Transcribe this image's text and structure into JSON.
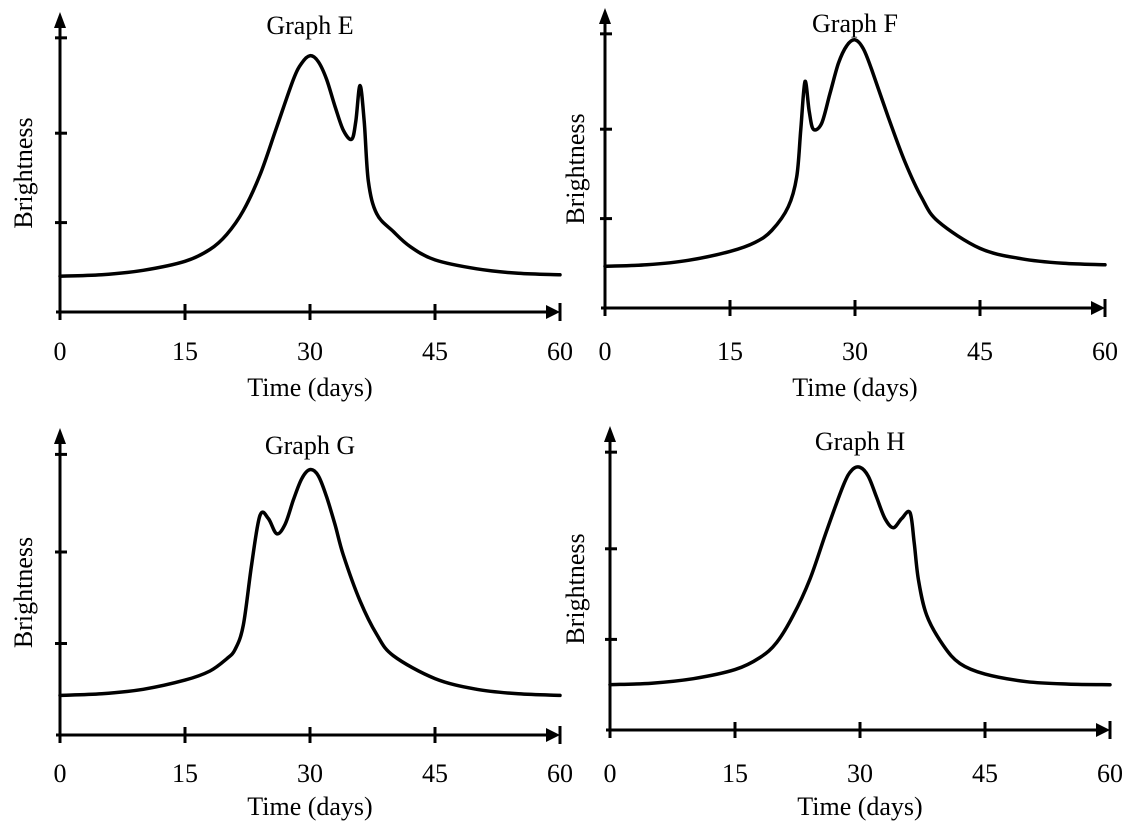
{
  "chart_data": [
    {
      "type": "line",
      "title": "Graph E",
      "xlabel": "Time (days)",
      "ylabel": "Brightness",
      "xlim": [
        0,
        60
      ],
      "x_ticks": [
        0,
        15,
        30,
        45,
        60
      ],
      "grid": false,
      "series": [
        {
          "x": [
            0,
            5,
            10,
            15,
            18,
            20,
            22,
            24,
            26,
            28,
            29,
            30,
            31,
            32,
            33,
            34,
            35,
            35.5,
            36,
            36.5,
            37,
            38,
            40,
            42,
            45,
            50,
            55,
            60
          ],
          "y": [
            0.12,
            0.125,
            0.14,
            0.17,
            0.21,
            0.26,
            0.34,
            0.46,
            0.62,
            0.78,
            0.835,
            0.86,
            0.84,
            0.78,
            0.69,
            0.61,
            0.58,
            0.64,
            0.76,
            0.64,
            0.44,
            0.33,
            0.27,
            0.22,
            0.175,
            0.145,
            0.13,
            0.125
          ]
        }
      ]
    },
    {
      "type": "line",
      "title": "Graph F",
      "xlabel": "Time (days)",
      "ylabel": "Brightness",
      "xlim": [
        0,
        60
      ],
      "x_ticks": [
        0,
        15,
        30,
        45,
        60
      ],
      "grid": false,
      "series": [
        {
          "x": [
            0,
            5,
            10,
            15,
            18,
            20,
            22,
            23,
            23.5,
            24,
            24.5,
            25,
            26,
            27,
            28,
            29,
            30,
            31,
            32,
            34,
            36,
            38,
            40,
            45,
            50,
            55,
            60
          ],
          "y": [
            0.14,
            0.145,
            0.16,
            0.19,
            0.22,
            0.26,
            0.34,
            0.44,
            0.6,
            0.76,
            0.66,
            0.6,
            0.62,
            0.72,
            0.82,
            0.88,
            0.9,
            0.87,
            0.8,
            0.64,
            0.49,
            0.37,
            0.29,
            0.2,
            0.165,
            0.15,
            0.145
          ]
        }
      ]
    },
    {
      "type": "line",
      "title": "Graph G",
      "xlabel": "Time (days)",
      "ylabel": "Brightness",
      "xlim": [
        0,
        60
      ],
      "x_ticks": [
        0,
        15,
        30,
        45,
        60
      ],
      "grid": false,
      "series": [
        {
          "x": [
            0,
            5,
            10,
            15,
            18,
            20,
            21,
            22,
            23,
            24,
            25,
            26,
            27,
            28,
            29,
            30,
            31,
            32,
            33,
            34,
            36,
            38,
            40,
            45,
            50,
            55,
            60
          ],
          "y": [
            0.13,
            0.135,
            0.15,
            0.18,
            0.21,
            0.25,
            0.28,
            0.36,
            0.56,
            0.72,
            0.71,
            0.66,
            0.69,
            0.77,
            0.84,
            0.87,
            0.85,
            0.78,
            0.69,
            0.59,
            0.44,
            0.33,
            0.26,
            0.185,
            0.15,
            0.135,
            0.13
          ]
        }
      ]
    },
    {
      "type": "line",
      "title": "Graph H",
      "xlabel": "Time (days)",
      "ylabel": "Brightness",
      "xlim": [
        0,
        60
      ],
      "x_ticks": [
        0,
        15,
        30,
        45,
        60
      ],
      "grid": false,
      "series": [
        {
          "x": [
            0,
            5,
            10,
            15,
            18,
            20,
            22,
            24,
            26,
            28,
            29,
            30,
            31,
            32,
            33,
            34,
            35,
            36,
            36.5,
            37,
            38,
            40,
            42,
            45,
            50,
            55,
            60
          ],
          "y": [
            0.15,
            0.155,
            0.17,
            0.2,
            0.24,
            0.29,
            0.38,
            0.5,
            0.66,
            0.81,
            0.86,
            0.87,
            0.84,
            0.77,
            0.7,
            0.67,
            0.7,
            0.72,
            0.62,
            0.5,
            0.38,
            0.28,
            0.22,
            0.185,
            0.16,
            0.152,
            0.15
          ]
        }
      ]
    }
  ]
}
